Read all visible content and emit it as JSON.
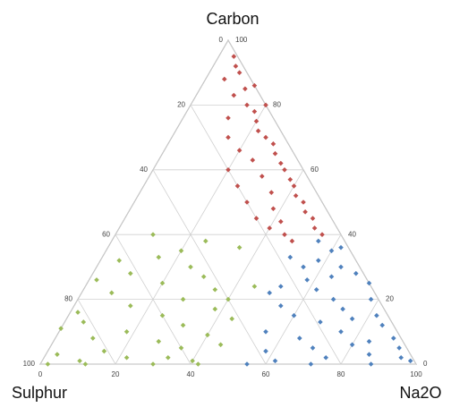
{
  "chart_data": {
    "type": "ternary-scatter",
    "axes": {
      "na2o": {
        "label": "Na2O",
        "lim": [
          0,
          100
        ],
        "ticks": [
          0,
          20,
          40,
          60,
          80,
          100
        ]
      },
      "carbon": {
        "label": "Carbon",
        "lim": [
          0,
          100
        ],
        "ticks": [
          0,
          20,
          40,
          60,
          80,
          100
        ]
      },
      "sulphur": {
        "label": "Sulphur",
        "lim": [
          0,
          100
        ],
        "ticks": [
          0,
          20,
          40,
          60,
          80,
          100
        ]
      }
    },
    "series": [
      {
        "color": "#c0504d",
        "carbon": [
          95,
          90,
          88,
          85,
          83,
          80,
          78,
          76,
          75,
          72,
          70,
          70,
          68,
          66,
          65,
          63,
          62,
          60,
          60,
          58,
          57,
          55,
          55,
          53,
          52,
          50,
          50,
          48,
          47,
          45,
          45,
          44,
          42,
          42,
          40,
          40,
          38,
          80,
          86,
          92
        ],
        "na2o": [
          4,
          8,
          5,
          12,
          10,
          15,
          18,
          12,
          20,
          22,
          25,
          15,
          28,
          20,
          30,
          25,
          33,
          20,
          35,
          30,
          38,
          25,
          40,
          35,
          42,
          30,
          45,
          38,
          47,
          35,
          50,
          42,
          40,
          52,
          45,
          55,
          48,
          20,
          14,
          6
        ]
      },
      {
        "color": "#9bbb59",
        "carbon": [
          35,
          33,
          30,
          28,
          27,
          25,
          23,
          22,
          20,
          18,
          17,
          15,
          13,
          12,
          10,
          9,
          8,
          7,
          5,
          4,
          3,
          2,
          1,
          1,
          0,
          0,
          0,
          0,
          32,
          38,
          40,
          26,
          20,
          14,
          6,
          11,
          36,
          24,
          16,
          2
        ],
        "na2o": [
          20,
          15,
          25,
          10,
          30,
          20,
          35,
          8,
          28,
          15,
          38,
          25,
          5,
          32,
          18,
          40,
          10,
          28,
          35,
          15,
          3,
          22,
          10,
          40,
          2,
          12,
          30,
          42,
          5,
          25,
          10,
          2,
          40,
          44,
          45,
          0,
          35,
          45,
          2,
          33
        ]
      },
      {
        "color": "#4f81bd",
        "carbon": [
          38,
          35,
          33,
          30,
          30,
          28,
          26,
          25,
          23,
          22,
          20,
          20,
          18,
          17,
          15,
          15,
          13,
          12,
          10,
          10,
          8,
          8,
          6,
          5,
          5,
          4,
          3,
          2,
          2,
          1,
          1,
          0,
          0,
          0,
          36,
          32,
          27,
          24,
          14,
          7
        ],
        "na2o": [
          55,
          60,
          50,
          65,
          55,
          70,
          58,
          75,
          62,
          50,
          78,
          68,
          55,
          72,
          82,
          60,
          68,
          85,
          75,
          55,
          90,
          65,
          80,
          93,
          70,
          58,
          86,
          95,
          75,
          62,
          98,
          88,
          72,
          55,
          62,
          58,
          64,
          52,
          76,
          84
        ]
      }
    ]
  }
}
